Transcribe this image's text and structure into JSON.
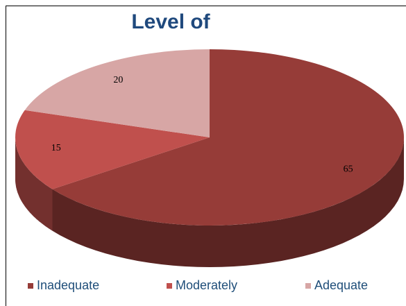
{
  "chart_data": {
    "type": "pie",
    "title": "Level of",
    "categories": [
      "Inadequate",
      "Moderately",
      "Adequate"
    ],
    "values": [
      65,
      15,
      20
    ],
    "colors": [
      "#963c38",
      "#c0504d",
      "#d7a6a5"
    ]
  }
}
